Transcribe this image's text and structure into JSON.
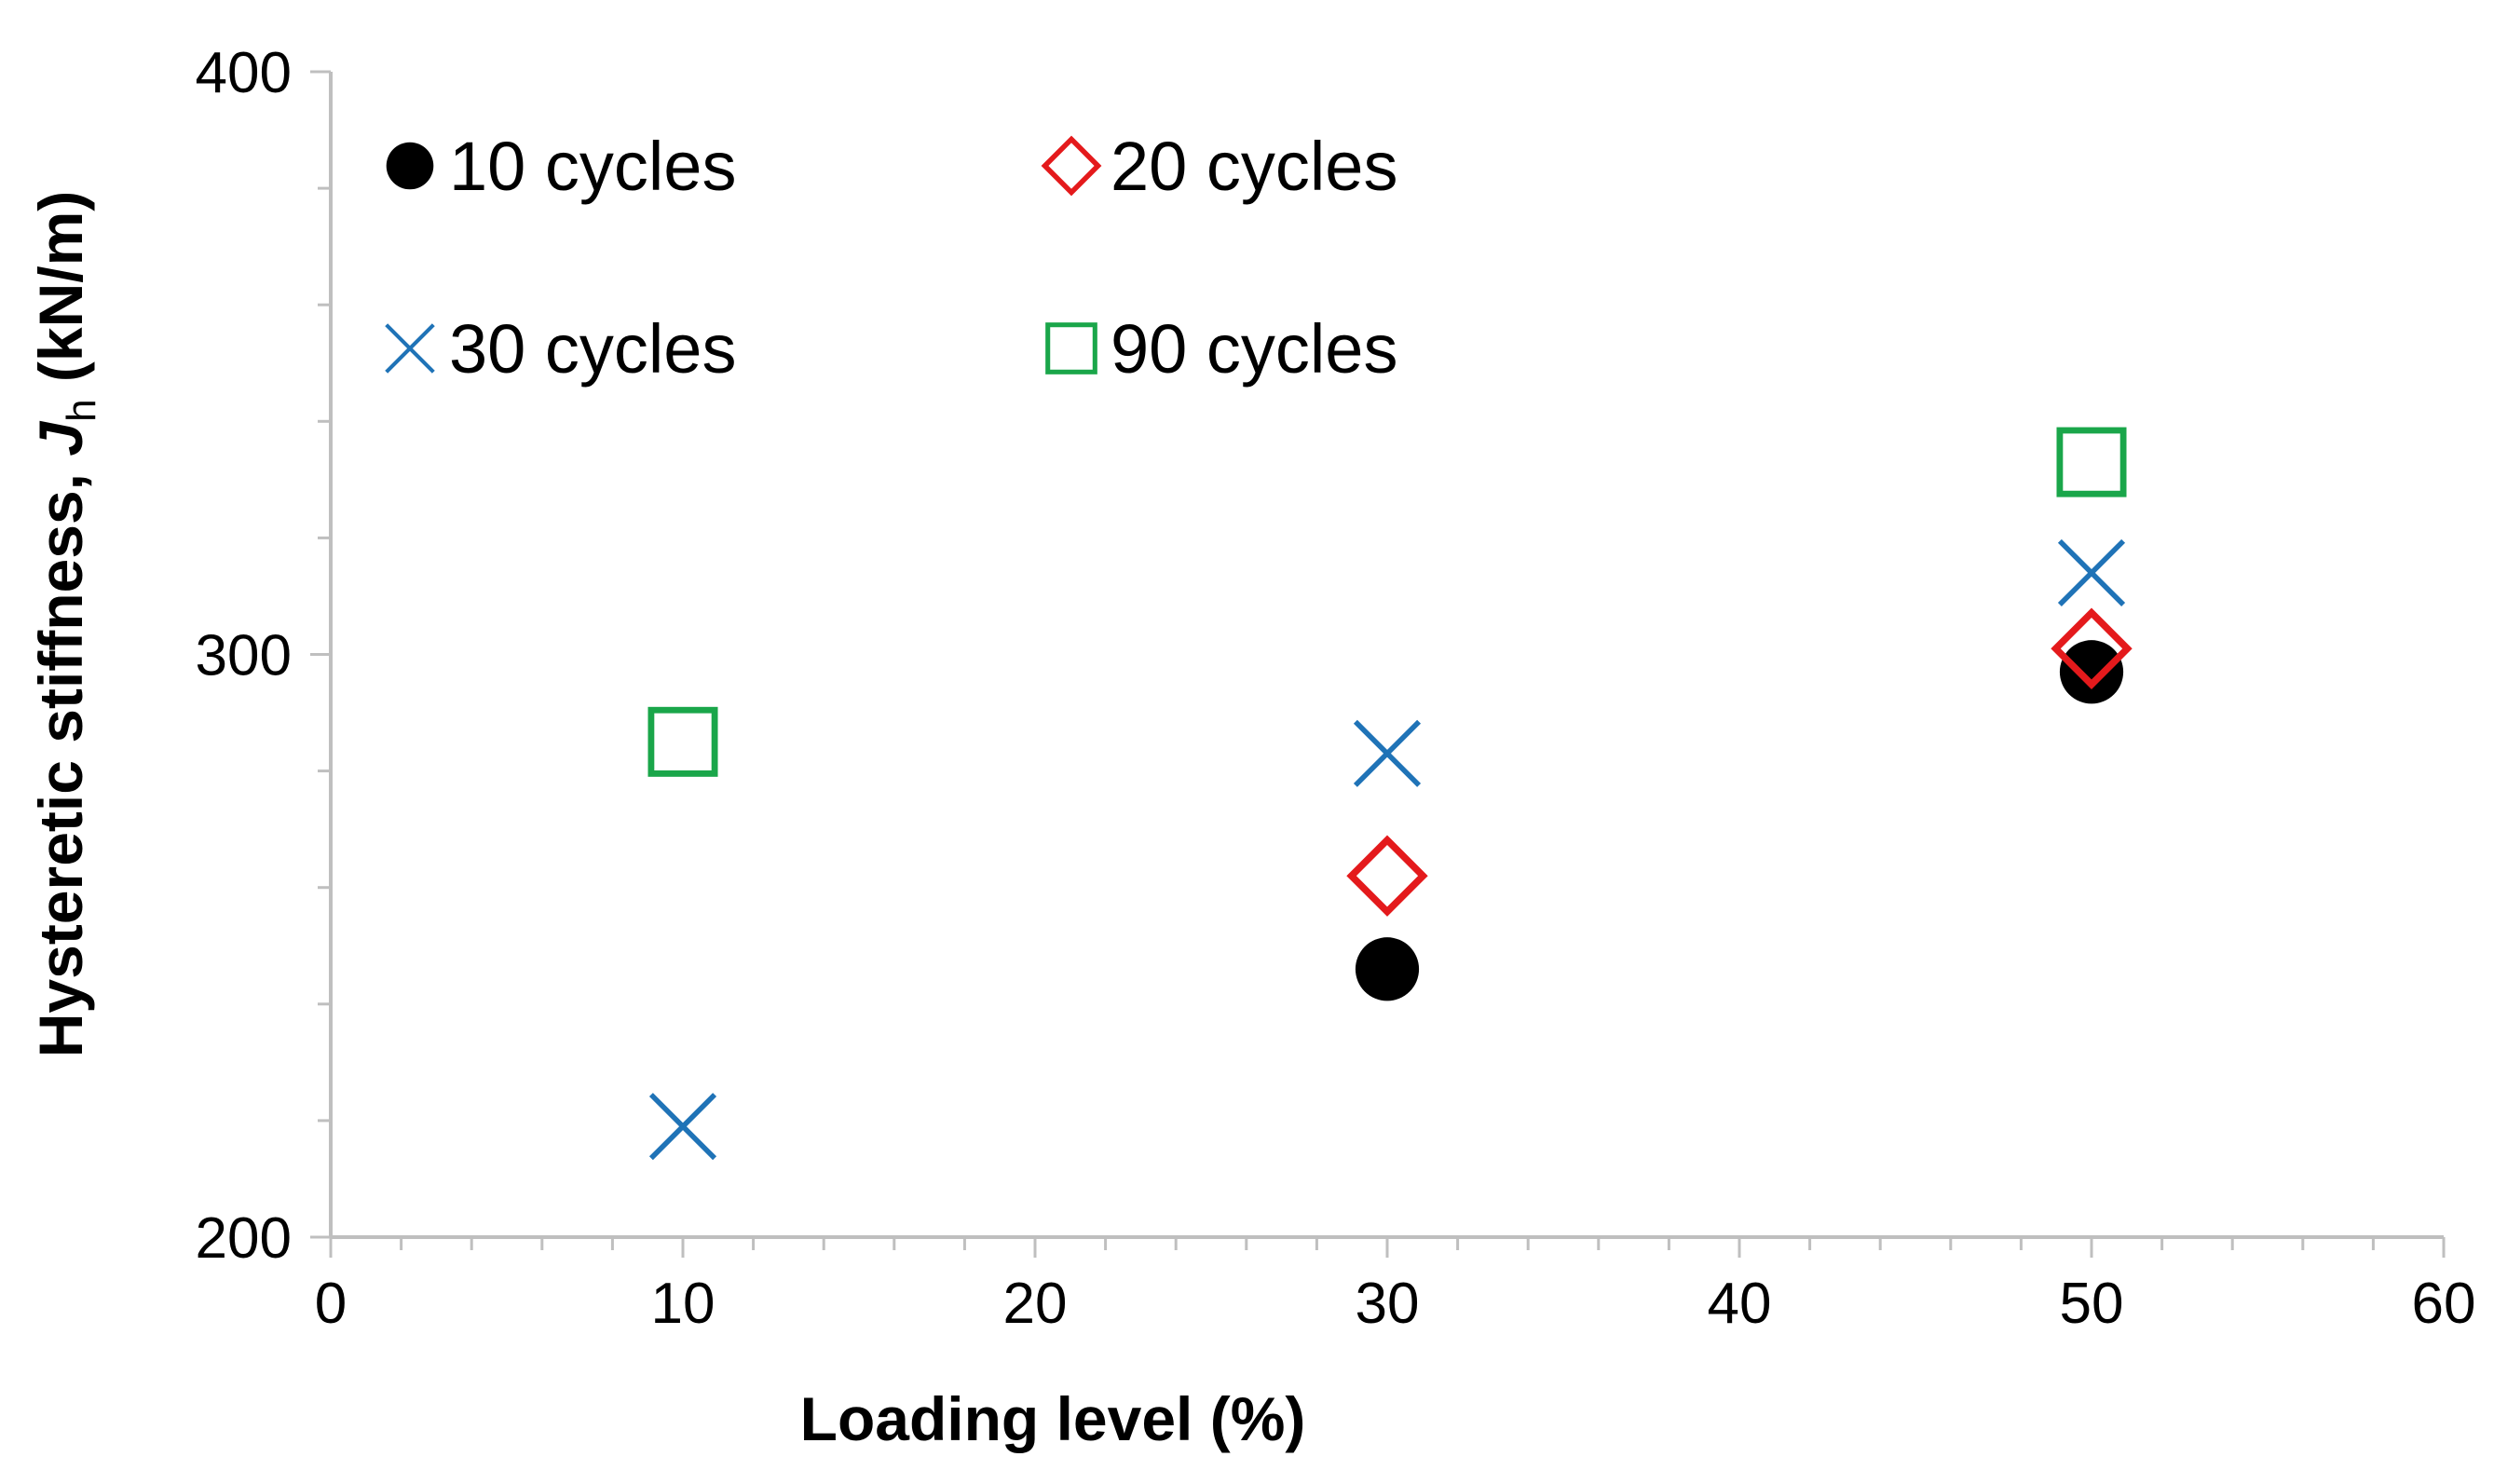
{
  "chart_data": {
    "type": "scatter",
    "xlabel": "Loading level (%)",
    "ylabel": {
      "prefix": "Hysteretic stiffness, ",
      "symbol": "J",
      "subscript": "h",
      "suffix": " (kN/m)"
    },
    "xlim": [
      0,
      60
    ],
    "ylim": [
      200,
      400
    ],
    "x_ticks": [
      "0",
      "10",
      "20",
      "30",
      "40",
      "50",
      "60"
    ],
    "y_ticks": [
      "200",
      "300",
      "400"
    ],
    "grid": false,
    "legend_position": "top-left, inside plot",
    "series": [
      {
        "name": "10 cycles",
        "marker": "filled-circle",
        "color": "#000000",
        "points": [
          {
            "x": 30,
            "y": 246
          },
          {
            "x": 50,
            "y": 297
          }
        ]
      },
      {
        "name": "20 cycles",
        "marker": "hollow-diamond",
        "color": "#e41a1c",
        "points": [
          {
            "x": 30,
            "y": 262
          },
          {
            "x": 50,
            "y": 301
          }
        ]
      },
      {
        "name": "30 cycles",
        "marker": "x-cross",
        "color": "#1f73b7",
        "points": [
          {
            "x": 10,
            "y": 219
          },
          {
            "x": 30,
            "y": 283
          },
          {
            "x": 50,
            "y": 314
          }
        ]
      },
      {
        "name": "90 cycles",
        "marker": "hollow-square",
        "color": "#1aa64a",
        "points": [
          {
            "x": 10,
            "y": 285
          },
          {
            "x": 50,
            "y": 333
          }
        ]
      }
    ]
  }
}
